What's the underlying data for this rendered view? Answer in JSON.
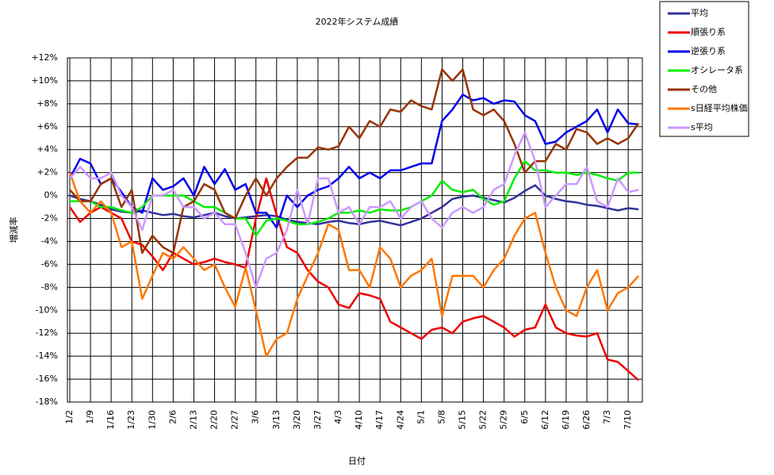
{
  "chart_data": {
    "type": "line",
    "title": "2022年システム成績",
    "x_label": "日付",
    "y_label": "増減率",
    "categories": [
      "1/2",
      null,
      "1/9",
      null,
      "1/16",
      null,
      "1/23",
      null,
      "1/30",
      null,
      "2/6",
      null,
      "2/13",
      null,
      "2/20",
      null,
      "2/27",
      null,
      "3/6",
      null,
      "3/13",
      null,
      "3/20",
      null,
      "3/27",
      null,
      "4/3",
      null,
      "4/10",
      null,
      "4/17",
      null,
      "4/24",
      null,
      "5/1",
      null,
      "5/8",
      null,
      "5/15",
      null,
      "5/22",
      null,
      "5/29",
      null,
      "6/5",
      null,
      "6/12",
      null,
      "6/19",
      null,
      "6/26",
      null,
      "7/3",
      null,
      "7/10",
      null
    ],
    "ylim": [
      -18,
      12
    ],
    "yticks": [
      {
        "value": -18,
        "label": "-18%"
      },
      {
        "value": -16,
        "label": "-16%"
      },
      {
        "value": -14,
        "label": "-14%"
      },
      {
        "value": -12,
        "label": "-12%"
      },
      {
        "value": -10,
        "label": "-10%"
      },
      {
        "value": -8,
        "label": "-8%"
      },
      {
        "value": -6,
        "label": "-6%"
      },
      {
        "value": -4,
        "label": "-4%"
      },
      {
        "value": -2,
        "label": "-2%"
      },
      {
        "value": 0,
        "label": "0%"
      },
      {
        "value": 2,
        "label": "+2%"
      },
      {
        "value": 4,
        "label": "+4%"
      },
      {
        "value": 6,
        "label": "+6%"
      },
      {
        "value": 8,
        "label": "+8%"
      },
      {
        "value": 10,
        "label": "+10%"
      },
      {
        "value": 12,
        "label": "+12%"
      }
    ],
    "grid": true,
    "legend": "right-top",
    "series": [
      {
        "name": "平均",
        "color": "#333399",
        "values": [
          0,
          -0.3,
          -0.5,
          -0.8,
          -1.2,
          -1.4,
          -1.5,
          -1.3,
          -1.5,
          -1.7,
          -1.6,
          -1.8,
          -1.9,
          -1.7,
          -1.5,
          -1.8,
          -2,
          -1.9,
          -1.8,
          -1.7,
          -1.8,
          -2.1,
          -2.3,
          -2.4,
          -2.5,
          -2.3,
          -2.2,
          -2.4,
          -2.5,
          -2.3,
          -2.2,
          -2.4,
          -2.6,
          -2.3,
          -2,
          -1.5,
          -1,
          -0.3,
          -0.1,
          0,
          -0.2,
          -0.4,
          -0.6,
          -0.2,
          0.4,
          0.9,
          0,
          -0.3,
          -0.5,
          -0.6,
          -0.8,
          -0.9,
          -1.1,
          -1.3,
          -1.1,
          -1.2
        ]
      },
      {
        "name": "順張り系",
        "color": "#ee0000",
        "values": [
          -1,
          -2.3,
          -1.5,
          -1,
          -1.5,
          -2,
          -4,
          -4.3,
          -5.3,
          -6.5,
          -5,
          -5.5,
          -6,
          -5.8,
          -5.5,
          -5.8,
          -6,
          -6.3,
          -2,
          1.5,
          -1.7,
          -4.5,
          -5,
          -6.5,
          -7.5,
          -8,
          -9.5,
          -9.8,
          -8.5,
          -8.7,
          -9,
          -11,
          -11.5,
          -12,
          -12.5,
          -11.7,
          -11.5,
          -12,
          -11,
          -10.7,
          -10.5,
          -11,
          -11.5,
          -12.3,
          -11.7,
          -11.5,
          -9.5,
          -11.5,
          -12,
          -12.2,
          -12.3,
          -12,
          -14.3,
          -14.5,
          -15.3,
          -16.1
        ]
      },
      {
        "name": "逆張り系",
        "color": "#0000ee",
        "values": [
          1.5,
          3.2,
          2.8,
          1,
          1.5,
          0.3,
          -1,
          -1.5,
          1.5,
          0.5,
          0.8,
          1.5,
          0,
          2.5,
          1,
          2.3,
          0.5,
          1,
          -1.5,
          -1.5,
          -2.8,
          0,
          -1,
          0,
          0.5,
          0.8,
          1.5,
          2.5,
          1.5,
          2,
          1.5,
          2.2,
          2.2,
          2.5,
          2.8,
          2.8,
          6.5,
          7.5,
          8.8,
          8.3,
          8.5,
          8,
          8.3,
          8.2,
          7,
          6.5,
          4.5,
          4.7,
          5.5,
          6,
          6.5,
          7.5,
          5.5,
          7.5,
          6.3,
          6.2
        ]
      },
      {
        "name": "オシレータ系",
        "color": "#00ee00",
        "values": [
          -0.5,
          -0.5,
          -0.5,
          -1,
          -1,
          -1.3,
          -1.5,
          -1,
          0,
          0,
          0,
          0,
          -0.5,
          -1,
          -1,
          -1.5,
          -2,
          -2,
          -3.5,
          -2.2,
          -2,
          -2.2,
          -2.5,
          -2.5,
          -2.3,
          -2,
          -1.5,
          -1.5,
          -1.3,
          -1.5,
          -1.2,
          -1.3,
          -1.3,
          -1,
          -0.5,
          0,
          1.3,
          0.5,
          0.3,
          0.5,
          -0.3,
          -0.8,
          -0.5,
          1.5,
          3,
          2.2,
          2.2,
          2,
          2,
          1.8,
          2,
          1.8,
          1.5,
          1.3,
          2,
          2
        ]
      },
      {
        "name": "その他",
        "color": "#993300",
        "values": [
          0.5,
          -0.5,
          -0.5,
          1,
          1.5,
          -1,
          0.5,
          -5,
          -3.5,
          -4.5,
          -5,
          -1,
          -0.5,
          1,
          0.5,
          -1.5,
          -2,
          0,
          1.5,
          0,
          1.5,
          2.5,
          3.3,
          3.3,
          4.2,
          4,
          4.3,
          6,
          5,
          6.5,
          6,
          7.5,
          7.3,
          8.3,
          7.8,
          7.5,
          11,
          10,
          11,
          7.5,
          7,
          7.5,
          6.5,
          4.5,
          2,
          3,
          3,
          4.5,
          4,
          5.8,
          5.5,
          4.5,
          5,
          4.5,
          5,
          6.3
        ]
      },
      {
        "name": "s日経平均株価",
        "color": "#ff7700",
        "values": [
          2,
          -0.5,
          -1.5,
          -0.5,
          -1.5,
          -4.5,
          -4,
          -9,
          -7,
          -5,
          -5.5,
          -4.5,
          -5.5,
          -6.5,
          -6,
          -8,
          -9.7,
          -6.3,
          -10,
          -14,
          -12.5,
          -12,
          -9,
          -7,
          -5,
          -2.5,
          -3,
          -6.5,
          -6.5,
          -8,
          -4.5,
          -5.5,
          -8,
          -7,
          -6.5,
          -5.5,
          -10.5,
          -7,
          -7,
          -7,
          -8,
          -6.5,
          -5.5,
          -3.5,
          -2,
          -1.5,
          -5,
          -8,
          -10,
          -10.5,
          -8,
          -6.5,
          -10,
          -8.5,
          -8,
          -7
        ]
      },
      {
        "name": "s平均",
        "color": "#cc99ff",
        "values": [
          1.5,
          2.5,
          1.5,
          1.5,
          2,
          0,
          -1,
          -3,
          0,
          0,
          0.5,
          -1,
          -1,
          -2,
          -1.5,
          -2.5,
          -2.5,
          -5,
          -8,
          -5.5,
          -5,
          -3,
          0.5,
          -2.5,
          1.5,
          1.5,
          -1.5,
          -1,
          -2.5,
          -1,
          -1,
          -0.5,
          -2,
          -1,
          -0.5,
          -2,
          -2.8,
          -1.5,
          -1,
          -1.5,
          -1,
          0.5,
          1,
          3.5,
          5.5,
          3,
          -1,
          0,
          1,
          1,
          2.5,
          -0.5,
          -1,
          1.5,
          0.3,
          0.5
        ]
      }
    ]
  }
}
